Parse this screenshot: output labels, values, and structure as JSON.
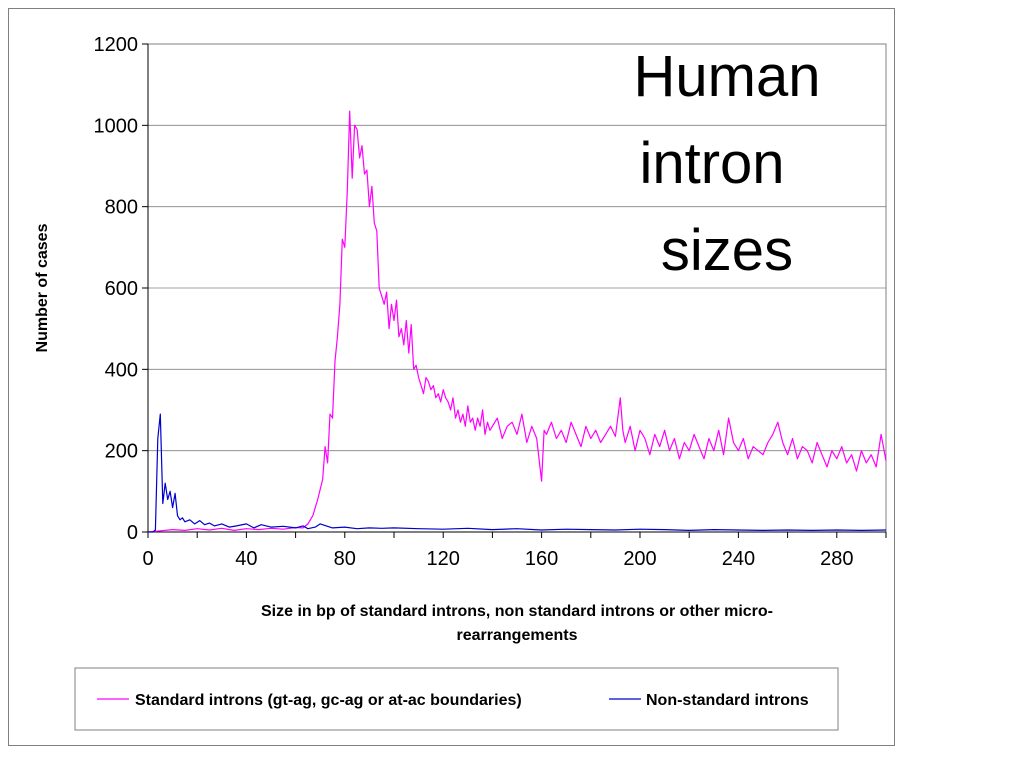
{
  "chart_data": {
    "type": "line",
    "title_lines": [
      "Human",
      "intron",
      "sizes"
    ],
    "xlabel_lines": [
      "Size in bp of standard introns, non standard introns or other micro-",
      "rearrangements"
    ],
    "ylabel": "Number of cases",
    "xlim": [
      0,
      300
    ],
    "ylim": [
      0,
      1200
    ],
    "x_ticks": [
      0,
      40,
      80,
      120,
      160,
      200,
      240,
      280
    ],
    "y_ticks": [
      0,
      200,
      400,
      600,
      800,
      1000,
      1200
    ],
    "grid": "horizontal",
    "legend_position": "bottom",
    "series": [
      {
        "name": "Standard introns (gt-ag, gc-ag or at-ac boundaries)",
        "color": "#ff00ff",
        "x": [
          0,
          5,
          10,
          15,
          20,
          25,
          30,
          35,
          40,
          45,
          50,
          55,
          60,
          63,
          65,
          67,
          69,
          71,
          72,
          73,
          74,
          75,
          76,
          77,
          78,
          79,
          80,
          81,
          82,
          83,
          84,
          85,
          86,
          87,
          88,
          89,
          90,
          91,
          92,
          93,
          94,
          95,
          96,
          97,
          98,
          99,
          100,
          101,
          102,
          103,
          104,
          105,
          106,
          107,
          108,
          109,
          110,
          111,
          112,
          113,
          114,
          115,
          116,
          117,
          118,
          119,
          120,
          121,
          122,
          123,
          124,
          125,
          126,
          127,
          128,
          129,
          130,
          131,
          132,
          133,
          134,
          135,
          136,
          137,
          138,
          139,
          140,
          142,
          144,
          146,
          148,
          150,
          152,
          154,
          156,
          158,
          160,
          161,
          162,
          164,
          166,
          168,
          170,
          172,
          174,
          176,
          178,
          180,
          182,
          184,
          186,
          188,
          190,
          192,
          193,
          194,
          196,
          198,
          200,
          202,
          204,
          206,
          208,
          210,
          212,
          214,
          216,
          218,
          220,
          222,
          224,
          226,
          228,
          230,
          232,
          234,
          236,
          238,
          240,
          242,
          244,
          246,
          248,
          250,
          252,
          254,
          256,
          258,
          260,
          262,
          264,
          266,
          268,
          270,
          272,
          274,
          276,
          278,
          280,
          282,
          284,
          286,
          288,
          290,
          292,
          294,
          296,
          298,
          300
        ],
        "values": [
          0,
          3,
          6,
          4,
          8,
          5,
          9,
          4,
          8,
          6,
          9,
          7,
          11,
          10,
          20,
          40,
          80,
          130,
          210,
          170,
          290,
          280,
          420,
          480,
          560,
          720,
          700,
          840,
          1035,
          870,
          1000,
          990,
          920,
          950,
          880,
          890,
          800,
          850,
          760,
          740,
          600,
          580,
          560,
          590,
          500,
          560,
          520,
          570,
          480,
          500,
          460,
          520,
          440,
          510,
          400,
          410,
          380,
          360,
          340,
          380,
          370,
          350,
          360,
          330,
          340,
          320,
          350,
          330,
          320,
          300,
          330,
          280,
          300,
          270,
          290,
          260,
          310,
          270,
          280,
          250,
          280,
          260,
          300,
          240,
          270,
          250,
          260,
          280,
          230,
          260,
          270,
          240,
          290,
          220,
          260,
          230,
          125,
          250,
          240,
          270,
          230,
          250,
          220,
          270,
          240,
          210,
          260,
          230,
          250,
          220,
          240,
          260,
          235,
          330,
          250,
          220,
          260,
          200,
          250,
          230,
          190,
          240,
          210,
          250,
          200,
          230,
          180,
          220,
          200,
          240,
          210,
          180,
          230,
          200,
          250,
          190,
          280,
          220,
          200,
          230,
          180,
          210,
          200,
          190,
          220,
          240,
          270,
          220,
          190,
          230,
          180,
          210,
          200,
          170,
          220,
          190,
          160,
          200,
          180,
          210,
          170,
          190,
          150,
          200,
          170,
          190,
          160,
          240,
          175
        ]
      },
      {
        "name": "Non-standard introns",
        "color": "#0000cc",
        "x": [
          0,
          1,
          2,
          3,
          4,
          5,
          6,
          7,
          8,
          9,
          10,
          11,
          12,
          13,
          14,
          15,
          17,
          19,
          21,
          23,
          25,
          27,
          30,
          33,
          36,
          40,
          43,
          46,
          50,
          55,
          60,
          63,
          65,
          68,
          70,
          75,
          80,
          85,
          90,
          95,
          100,
          110,
          120,
          130,
          140,
          150,
          160,
          170,
          180,
          190,
          200,
          210,
          220,
          230,
          240,
          250,
          260,
          270,
          280,
          290,
          300
        ],
        "values": [
          0,
          0,
          0,
          5,
          230,
          290,
          70,
          120,
          80,
          100,
          60,
          95,
          40,
          30,
          35,
          25,
          30,
          20,
          28,
          18,
          22,
          15,
          20,
          12,
          15,
          20,
          10,
          18,
          12,
          14,
          10,
          15,
          8,
          12,
          20,
          10,
          12,
          8,
          10,
          9,
          10,
          8,
          7,
          9,
          6,
          8,
          5,
          7,
          6,
          5,
          7,
          6,
          4,
          6,
          5,
          4,
          5,
          4,
          5,
          4,
          5
        ]
      }
    ]
  }
}
